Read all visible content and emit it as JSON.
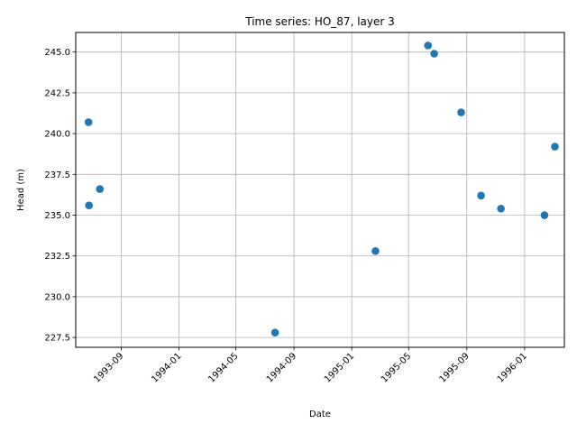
{
  "chart_data": {
    "type": "scatter",
    "title": "Time series: HO_87, layer 3",
    "xlabel": "Date",
    "ylabel": "Head (m)",
    "x_is_date": true,
    "xlim": [
      "1993-05-28",
      "1996-03-25"
    ],
    "ylim": [
      226.9,
      246.2
    ],
    "x_ticks": [
      "1993-09",
      "1994-01",
      "1994-05",
      "1994-09",
      "1995-01",
      "1995-05",
      "1995-09",
      "1996-01"
    ],
    "y_ticks": [
      "227.5",
      "230.0",
      "232.5",
      "235.0",
      "237.5",
      "240.0",
      "242.5",
      "245.0"
    ],
    "grid": true,
    "marker_color": "#1f77b4",
    "series": [
      {
        "points": [
          {
            "x": "1993-06-24",
            "y": 240.7
          },
          {
            "x": "1993-06-25",
            "y": 235.6
          },
          {
            "x": "1993-07-18",
            "y": 236.6
          },
          {
            "x": "1994-07-23",
            "y": 227.8
          },
          {
            "x": "1995-02-20",
            "y": 232.8
          },
          {
            "x": "1995-06-11",
            "y": 245.4
          },
          {
            "x": "1995-06-24",
            "y": 244.9
          },
          {
            "x": "1995-08-20",
            "y": 241.3
          },
          {
            "x": "1995-10-01",
            "y": 236.2
          },
          {
            "x": "1995-11-12",
            "y": 235.4
          },
          {
            "x": "1996-02-12",
            "y": 235.0
          },
          {
            "x": "1996-03-05",
            "y": 239.2
          }
        ]
      }
    ]
  }
}
